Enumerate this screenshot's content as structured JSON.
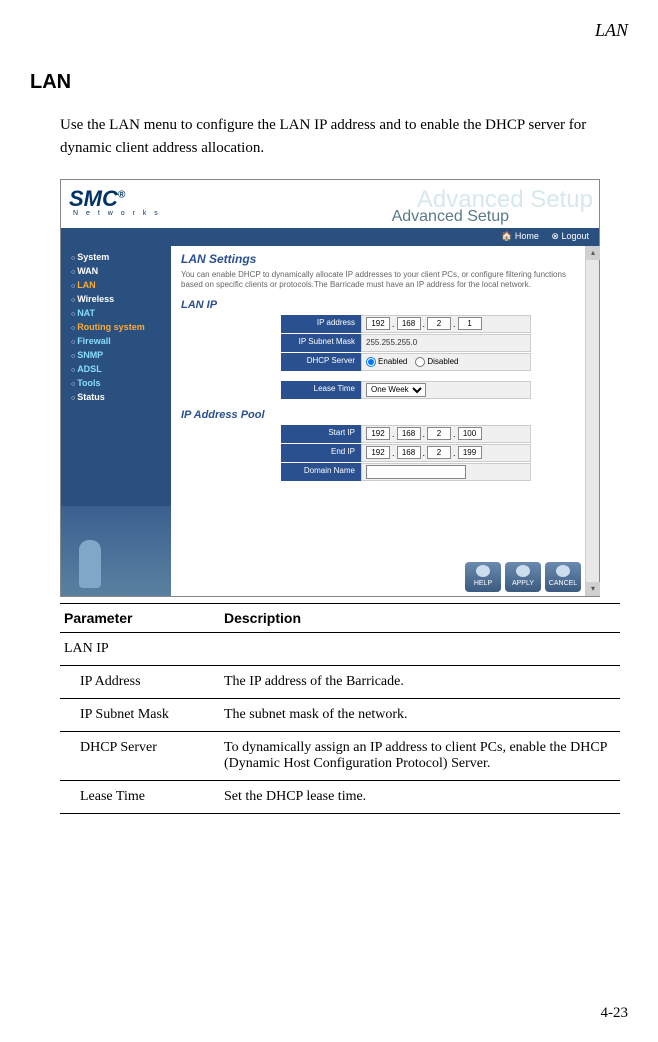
{
  "page": {
    "header_label": "LAN",
    "section_title": "LAN",
    "intro": "Use the LAN menu to configure the LAN IP address and to enable the DHCP server for dynamic client address allocation.",
    "page_number": "4-23"
  },
  "router": {
    "logo": "SMC",
    "logo_reg": "®",
    "logo_sub": "N e t w o r k s",
    "banner_ghost": "Advanced Setup",
    "banner_label": "Advanced Setup",
    "toolbar": {
      "home": "Home",
      "logout": "Logout"
    },
    "sidebar": [
      {
        "label": "System",
        "cls": ""
      },
      {
        "label": "WAN",
        "cls": ""
      },
      {
        "label": "LAN",
        "cls": "hl-orange"
      },
      {
        "label": "Wireless",
        "cls": ""
      },
      {
        "label": "NAT",
        "cls": "hl-cyan"
      },
      {
        "label": "Routing system",
        "cls": "hl-orange"
      },
      {
        "label": "Firewall",
        "cls": "hl-cyan"
      },
      {
        "label": "SNMP",
        "cls": "hl-cyan"
      },
      {
        "label": "ADSL",
        "cls": "hl-cyan"
      },
      {
        "label": "Tools",
        "cls": "hl-cyan"
      },
      {
        "label": "Status",
        "cls": ""
      }
    ],
    "content": {
      "title": "LAN Settings",
      "desc": "You can enable DHCP to dynamically allocate IP addresses to your client PCs, or configure filtering functions based on specific clients or protocols.The Barricade must have an IP address for the local network.",
      "lan_ip_title": "LAN IP",
      "ip_address_label": "IP address",
      "ip_address": [
        "192",
        "168",
        "2",
        "1"
      ],
      "subnet_label": "IP Subnet Mask",
      "subnet_value": "255.255.255.0",
      "dhcp_label": "DHCP Server",
      "dhcp_enabled_label": "Enabled",
      "dhcp_disabled_label": "Disabled",
      "dhcp_selected": "enabled",
      "lease_label": "Lease Time",
      "lease_value": "One Week",
      "pool_title": "IP Address Pool",
      "start_ip_label": "Start IP",
      "start_ip": [
        "192",
        "168",
        "2",
        "100"
      ],
      "end_ip_label": "End IP",
      "end_ip": [
        "192",
        "168",
        "2",
        "199"
      ],
      "domain_label": "Domain Name",
      "domain_value": ""
    },
    "buttons": {
      "help": "HELP",
      "apply": "APPLY",
      "cancel": "CANCEL"
    }
  },
  "param_table": {
    "col_param": "Parameter",
    "col_desc": "Description",
    "rows": [
      {
        "name": "LAN IP",
        "desc": "",
        "indent": false
      },
      {
        "name": "IP Address",
        "desc": "The IP address of the Barricade.",
        "indent": true
      },
      {
        "name": "IP Subnet Mask",
        "desc": "The subnet mask of the network.",
        "indent": true
      },
      {
        "name": "DHCP Server",
        "desc": "To dynamically assign an IP address to client PCs, enable the DHCP (Dynamic Host Configuration Protocol) Server.",
        "indent": true
      },
      {
        "name": "Lease Time",
        "desc": "Set the DHCP lease time.",
        "indent": true
      }
    ]
  },
  "styling": {
    "header_bg": "#2a5080",
    "label_bg": "#2a5090",
    "accent_orange": "#ffaa33",
    "accent_cyan": "#88ddff",
    "page_bg": "#ffffff"
  }
}
